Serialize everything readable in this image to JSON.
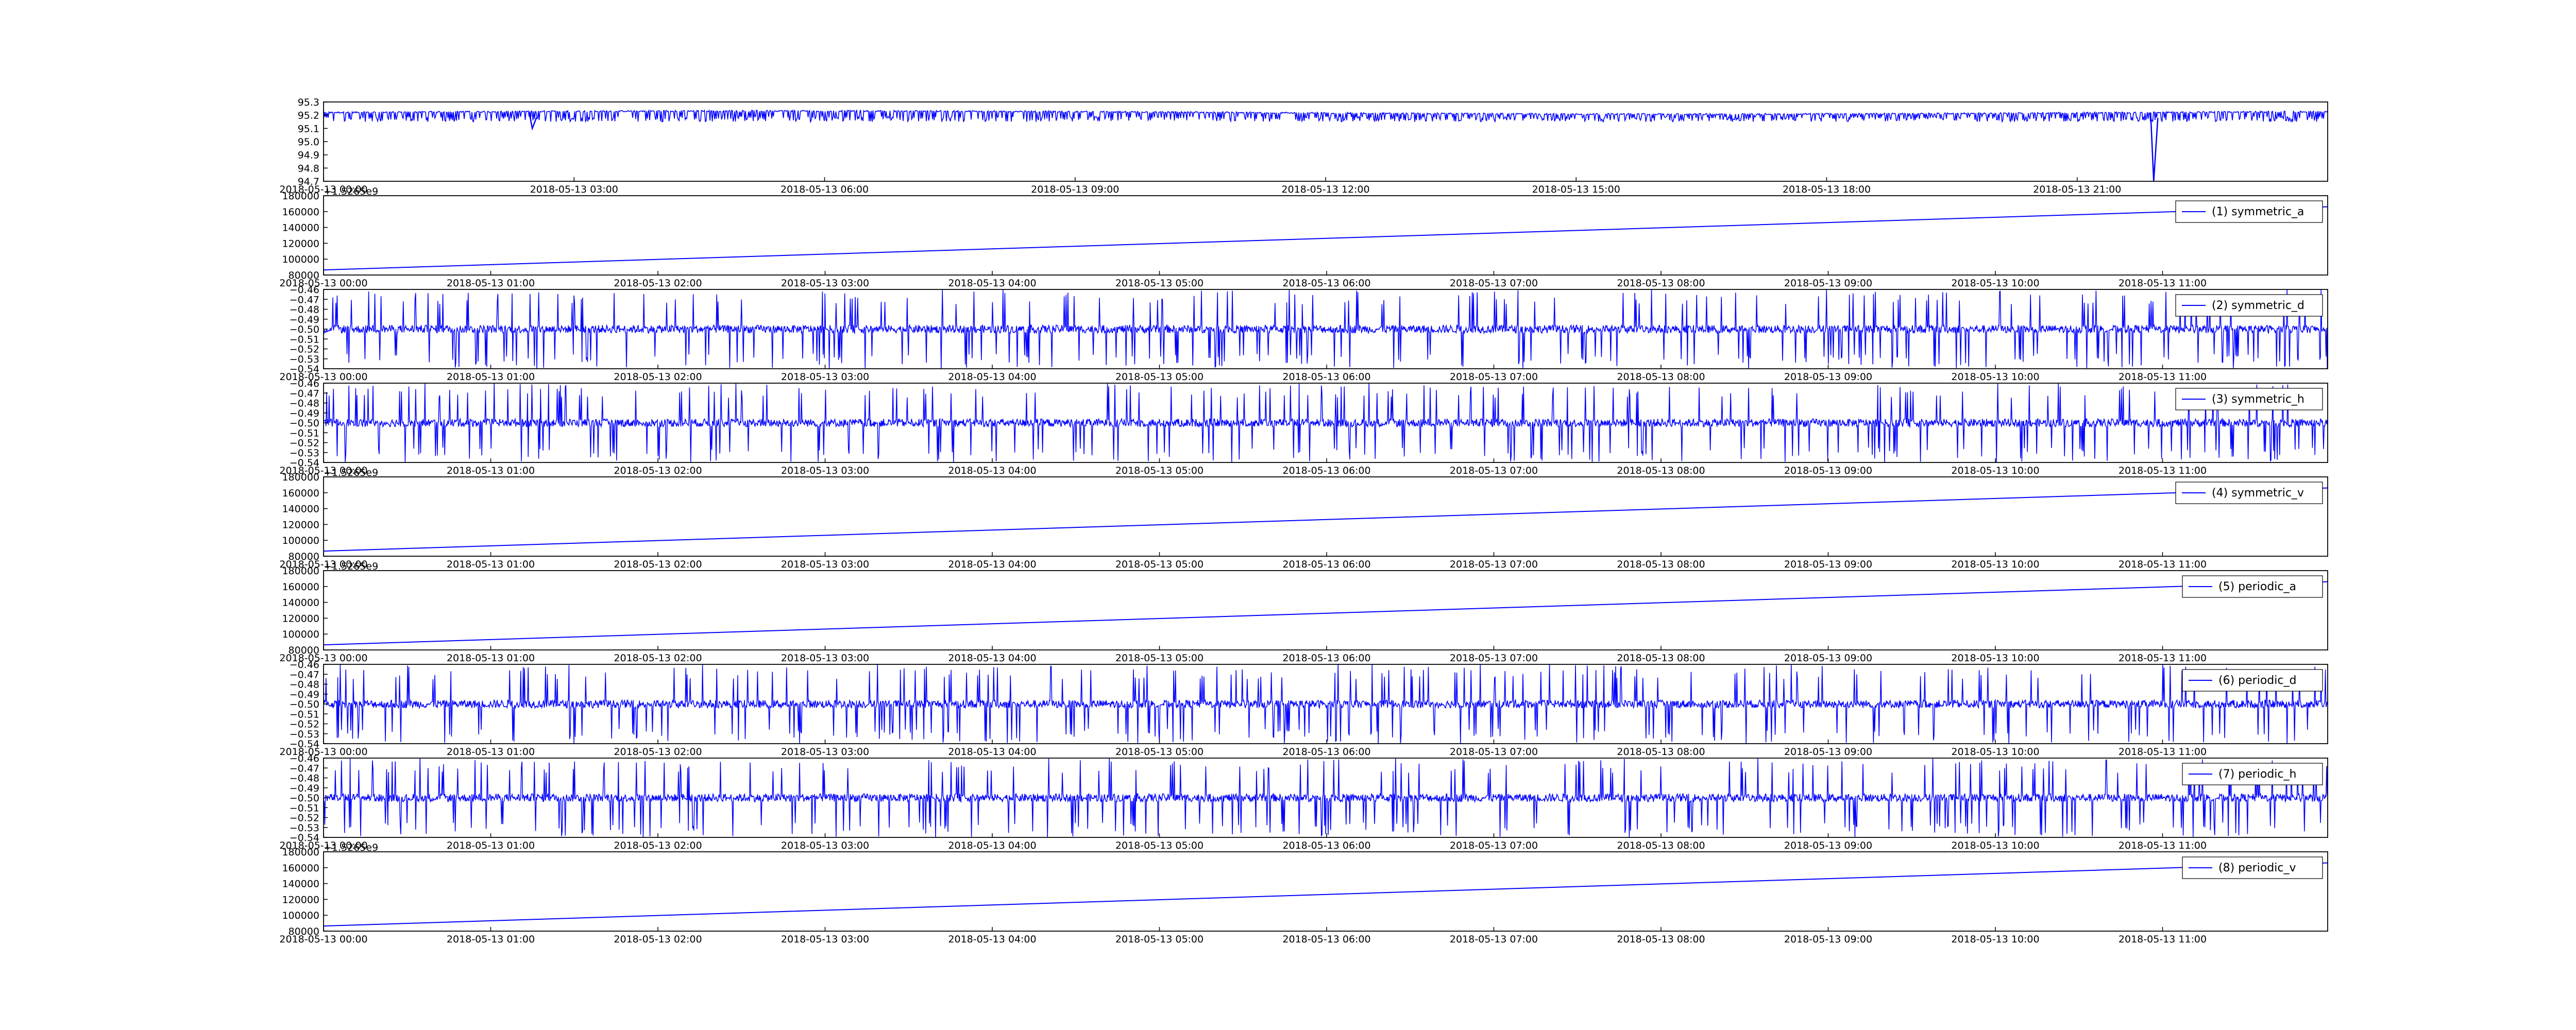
{
  "line_color": "#0000ff",
  "chart_data": [
    {
      "type": "line",
      "x_axis": "time",
      "y_ticks": [
        "95.3",
        "95.2",
        "95.1",
        "95.0",
        "94.9",
        "94.8",
        "94.7"
      ],
      "x_ticks": [
        "2018-05-13 00:00",
        "2018-05-13 03:00",
        "2018-05-13 06:00",
        "2018-05-13 09:00",
        "2018-05-13 12:00",
        "2018-05-13 15:00",
        "2018-05-13 18:00",
        "2018-05-13 21:00"
      ],
      "ylim": [
        94.7,
        95.3
      ],
      "xlim": [
        "2018-05-13 00:00",
        "2018-05-14 00:00"
      ],
      "series": [
        {
          "baseline": 95.22,
          "noise_floor": 95.15,
          "dense_spikes": true,
          "events": [
            {
              "time": "2018-05-13 02:30",
              "value": 95.1
            },
            {
              "time": "2018-05-13 21:55",
              "value": 94.7
            }
          ]
        }
      ],
      "grid": false
    },
    {
      "type": "line",
      "offset_label": "+1.5265e9",
      "y_ticks": [
        "180000",
        "160000",
        "140000",
        "120000",
        "100000",
        "80000"
      ],
      "x_ticks": [
        "2018-05-13 00:00",
        "2018-05-13 01:00",
        "2018-05-13 02:00",
        "2018-05-13 03:00",
        "2018-05-13 04:00",
        "2018-05-13 05:00",
        "2018-05-13 06:00",
        "2018-05-13 07:00",
        "2018-05-13 08:00",
        "2018-05-13 09:00",
        "2018-05-13 10:00",
        "2018-05-13 11:00"
      ],
      "ylim": [
        80000,
        180000
      ],
      "series": [
        {
          "name": "(1) symmetric_a",
          "start": 86400,
          "end": 166000
        }
      ],
      "legend_placement": "top-right",
      "grid": false
    },
    {
      "type": "line",
      "y_ticks": [
        "−0.46",
        "−0.47",
        "−0.48",
        "−0.49",
        "−0.50",
        "−0.51",
        "−0.52",
        "−0.53",
        "−0.54"
      ],
      "x_ticks": [
        "2018-05-13 00:00",
        "2018-05-13 01:00",
        "2018-05-13 02:00",
        "2018-05-13 03:00",
        "2018-05-13 04:00",
        "2018-05-13 05:00",
        "2018-05-13 06:00",
        "2018-05-13 07:00",
        "2018-05-13 08:00",
        "2018-05-13 09:00",
        "2018-05-13 10:00",
        "2018-05-13 11:00"
      ],
      "ylim": [
        -0.54,
        -0.46
      ],
      "series": [
        {
          "name": "(2) symmetric_d",
          "baseline": -0.5,
          "range": [
            -0.54,
            -0.46
          ]
        }
      ],
      "legend_placement": "top-right",
      "grid": false
    },
    {
      "type": "line",
      "y_ticks": [
        "−0.46",
        "−0.47",
        "−0.48",
        "−0.49",
        "−0.50",
        "−0.51",
        "−0.52",
        "−0.53",
        "−0.54"
      ],
      "x_ticks": [
        "2018-05-13 00:00",
        "2018-05-13 01:00",
        "2018-05-13 02:00",
        "2018-05-13 03:00",
        "2018-05-13 04:00",
        "2018-05-13 05:00",
        "2018-05-13 06:00",
        "2018-05-13 07:00",
        "2018-05-13 08:00",
        "2018-05-13 09:00",
        "2018-05-13 10:00",
        "2018-05-13 11:00"
      ],
      "ylim": [
        -0.54,
        -0.46
      ],
      "series": [
        {
          "name": "(3) symmetric_h",
          "baseline": -0.5,
          "range": [
            -0.54,
            -0.46
          ]
        }
      ],
      "legend_placement": "top-right",
      "grid": false
    },
    {
      "type": "line",
      "offset_label": "+1.5265e9",
      "y_ticks": [
        "180000",
        "160000",
        "140000",
        "120000",
        "100000",
        "80000"
      ],
      "x_ticks": [
        "2018-05-13 00:00",
        "2018-05-13 01:00",
        "2018-05-13 02:00",
        "2018-05-13 03:00",
        "2018-05-13 04:00",
        "2018-05-13 05:00",
        "2018-05-13 06:00",
        "2018-05-13 07:00",
        "2018-05-13 08:00",
        "2018-05-13 09:00",
        "2018-05-13 10:00",
        "2018-05-13 11:00"
      ],
      "ylim": [
        80000,
        180000
      ],
      "series": [
        {
          "name": "(4) symmetric_v",
          "start": 86400,
          "end": 166000
        }
      ],
      "legend_placement": "top-right",
      "grid": false
    },
    {
      "type": "line",
      "offset_label": "+1.5265e9",
      "y_ticks": [
        "180000",
        "160000",
        "140000",
        "120000",
        "100000",
        "80000"
      ],
      "x_ticks": [
        "2018-05-13 00:00",
        "2018-05-13 01:00",
        "2018-05-13 02:00",
        "2018-05-13 03:00",
        "2018-05-13 04:00",
        "2018-05-13 05:00",
        "2018-05-13 06:00",
        "2018-05-13 07:00",
        "2018-05-13 08:00",
        "2018-05-13 09:00",
        "2018-05-13 10:00",
        "2018-05-13 11:00"
      ],
      "ylim": [
        80000,
        180000
      ],
      "series": [
        {
          "name": "(5) periodic_a",
          "start": 86400,
          "end": 166000
        }
      ],
      "legend_placement": "top-right",
      "grid": false
    },
    {
      "type": "line",
      "y_ticks": [
        "−0.46",
        "−0.47",
        "−0.48",
        "−0.49",
        "−0.50",
        "−0.51",
        "−0.52",
        "−0.53",
        "−0.54"
      ],
      "x_ticks": [
        "2018-05-13 00:00",
        "2018-05-13 01:00",
        "2018-05-13 02:00",
        "2018-05-13 03:00",
        "2018-05-13 04:00",
        "2018-05-13 05:00",
        "2018-05-13 06:00",
        "2018-05-13 07:00",
        "2018-05-13 08:00",
        "2018-05-13 09:00",
        "2018-05-13 10:00",
        "2018-05-13 11:00"
      ],
      "ylim": [
        -0.54,
        -0.46
      ],
      "series": [
        {
          "name": "(6) periodic_d",
          "baseline": -0.5,
          "range": [
            -0.54,
            -0.46
          ]
        }
      ],
      "legend_placement": "top-right",
      "grid": false
    },
    {
      "type": "line",
      "y_ticks": [
        "−0.46",
        "−0.47",
        "−0.48",
        "−0.49",
        "−0.50",
        "−0.51",
        "−0.52",
        "−0.53",
        "−0.54"
      ],
      "x_ticks": [
        "2018-05-13 00:00",
        "2018-05-13 01:00",
        "2018-05-13 02:00",
        "2018-05-13 03:00",
        "2018-05-13 04:00",
        "2018-05-13 05:00",
        "2018-05-13 06:00",
        "2018-05-13 07:00",
        "2018-05-13 08:00",
        "2018-05-13 09:00",
        "2018-05-13 10:00",
        "2018-05-13 11:00"
      ],
      "ylim": [
        -0.54,
        -0.46
      ],
      "series": [
        {
          "name": "(7) periodic_h",
          "baseline": -0.5,
          "range": [
            -0.54,
            -0.46
          ]
        }
      ],
      "legend_placement": "top-right",
      "grid": false
    },
    {
      "type": "line",
      "offset_label": "+1.5265e9",
      "y_ticks": [
        "180000",
        "160000",
        "140000",
        "120000",
        "100000",
        "80000"
      ],
      "x_ticks": [
        "2018-05-13 00:00",
        "2018-05-13 01:00",
        "2018-05-13 02:00",
        "2018-05-13 03:00",
        "2018-05-13 04:00",
        "2018-05-13 05:00",
        "2018-05-13 06:00",
        "2018-05-13 07:00",
        "2018-05-13 08:00",
        "2018-05-13 09:00",
        "2018-05-13 10:00",
        "2018-05-13 11:00"
      ],
      "ylim": [
        80000,
        180000
      ],
      "series": [
        {
          "name": "(8) periodic_v",
          "start": 86400,
          "end": 166000
        }
      ],
      "legend_placement": "top-right",
      "grid": false
    }
  ]
}
